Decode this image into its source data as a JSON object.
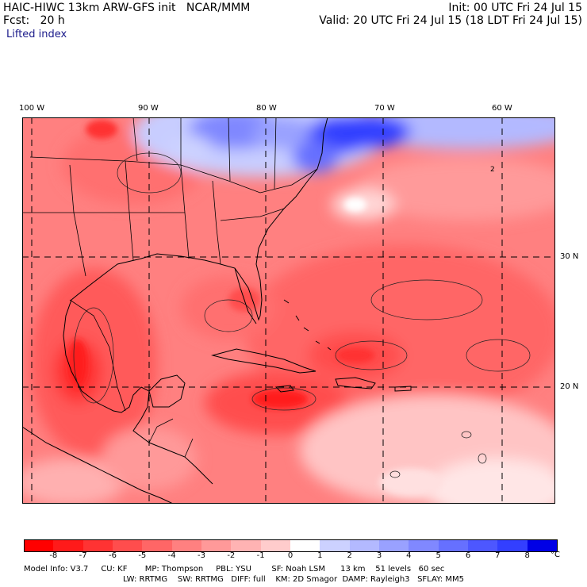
{
  "header": {
    "title": "HAIC-HIWC 13km ARW-GFS init   NCAR/MMM",
    "init": "Init: 00 UTC Fri 24 Jul 15",
    "fcst": "Fcst:   20 h",
    "valid": "Valid: 20 UTC Fri 24 Jul 15 (18 LDT Fri 24 Jul 15)",
    "field": "Lifted index"
  },
  "map": {
    "lon_labels": [
      "100 W",
      "90 W",
      "80 W",
      "70 W",
      "60 W"
    ],
    "lat_labels": [
      "30 N",
      "20 N"
    ],
    "cell_labels": [
      "2"
    ]
  },
  "colorbar": {
    "unit": "°C",
    "ticks": [
      "-8",
      "-7",
      "-6",
      "-5",
      "-4",
      "-3",
      "-2",
      "-1",
      "0",
      "1",
      "2",
      "3",
      "4",
      "5",
      "6",
      "7",
      "8"
    ],
    "colors": [
      "#ff0000",
      "#ff1a1a",
      "#ff3333",
      "#ff4d4d",
      "#ff6666",
      "#ff8080",
      "#ff9999",
      "#ffb3b3",
      "#ffcccc",
      "#ffffff",
      "#ccd1ff",
      "#b3b9ff",
      "#99a1ff",
      "#8088ff",
      "#6670ff",
      "#4d57ff",
      "#333fff",
      "#0000e6"
    ]
  },
  "model_info": {
    "line1": "Model Info: V3.7     CU: KF       MP: Thompson     PBL: YSU        SF: Noah LSM      13 km    51 levels   60 sec",
    "line2": "LW: RRTMG    SW: RRTMG   DIFF: full    KM: 2D Smagor  DAMP: Rayleigh3   SFLAY: MM5"
  }
}
